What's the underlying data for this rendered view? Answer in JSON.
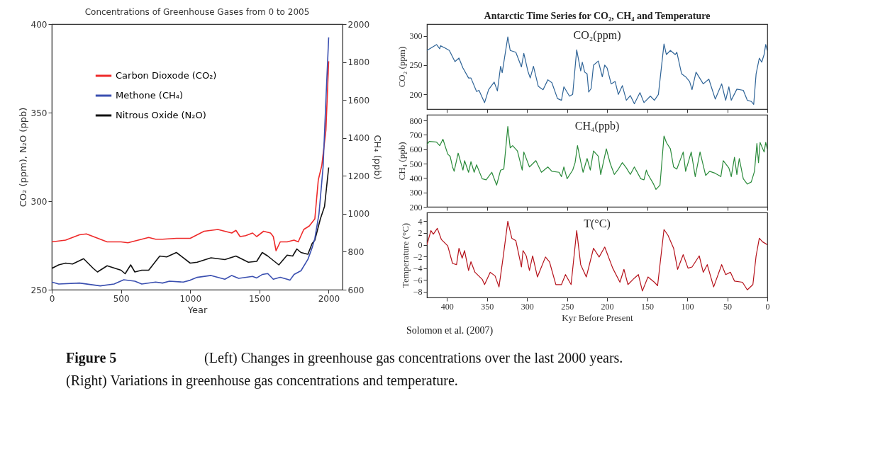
{
  "chart_data": [
    {
      "type": "line",
      "title": "Concentrations of Greenhouse Gases from 0 to 2005",
      "xlabel": "Year",
      "ylabel": "CO₂ (ppm), N₂O (ppb)",
      "y2label": "CH₄ (ppb)",
      "xlim": [
        0,
        2100
      ],
      "xticks": [
        0,
        500,
        1000,
        1500,
        2000
      ],
      "ylim": [
        250,
        400
      ],
      "yticks": [
        250,
        300,
        350,
        400
      ],
      "y2lim": [
        600,
        2000
      ],
      "y2ticks": [
        600,
        800,
        1000,
        1200,
        1400,
        1600,
        1800,
        2000
      ],
      "legend": "top left",
      "grid": false,
      "series": [
        {
          "name": "Carbon Dioxode (CO₂)",
          "color": "#ee2a2a",
          "x": [
            0,
            100,
            200,
            250,
            300,
            400,
            500,
            550,
            600,
            700,
            750,
            800,
            900,
            1000,
            1050,
            1100,
            1200,
            1250,
            1300,
            1330,
            1360,
            1400,
            1450,
            1480,
            1530,
            1580,
            1600,
            1620,
            1650,
            1700,
            1750,
            1780,
            1820,
            1860,
            1900,
            1925,
            1950,
            1980,
            2000
          ],
          "values": [
            277,
            278,
            281,
            281.5,
            280,
            277,
            277,
            276.5,
            277.5,
            279.5,
            278.5,
            278.5,
            279,
            279,
            281,
            283,
            284,
            283,
            282,
            283.5,
            280,
            280.5,
            282,
            280,
            283,
            282,
            280,
            272,
            277,
            277,
            278,
            277,
            284,
            286,
            290,
            312,
            320,
            340,
            379
          ]
        },
        {
          "name": "Methone (CH₄)",
          "color": "#3a4fb0",
          "axis": "y2",
          "x": [
            0,
            50,
            200,
            350,
            450,
            520,
            600,
            650,
            750,
            800,
            850,
            950,
            1000,
            1050,
            1150,
            1250,
            1300,
            1350,
            1450,
            1480,
            1520,
            1560,
            1600,
            1650,
            1700,
            1720,
            1750,
            1800,
            1850,
            1880,
            1900,
            1930,
            1960,
            1980,
            2000
          ],
          "values": [
            640,
            630,
            635,
            620,
            630,
            652,
            645,
            630,
            640,
            635,
            645,
            640,
            650,
            665,
            675,
            655,
            675,
            660,
            670,
            662,
            680,
            685,
            655,
            665,
            655,
            650,
            680,
            700,
            760,
            820,
            870,
            1000,
            1250,
            1600,
            1930
          ]
        },
        {
          "name": "Nitrous Oxide (N₂O)",
          "color": "#111111",
          "x": [
            0,
            50,
            100,
            150,
            230,
            300,
            330,
            400,
            500,
            530,
            570,
            600,
            650,
            700,
            780,
            830,
            900,
            1000,
            1050,
            1150,
            1250,
            1330,
            1420,
            1480,
            1520,
            1560,
            1640,
            1700,
            1740,
            1770,
            1800,
            1850,
            1880,
            1900,
            1940,
            1970,
            2000
          ],
          "values": [
            262,
            264,
            265,
            264.5,
            267.5,
            262,
            260,
            263.5,
            261,
            259,
            264,
            260,
            261,
            261,
            269,
            268.5,
            271,
            265,
            265.5,
            268,
            267,
            269,
            265.5,
            266,
            271,
            269,
            264,
            269.5,
            269,
            273,
            271,
            270,
            276,
            278,
            290,
            297,
            319
          ]
        }
      ],
      "annotations": [
        "Solomon et al. (2007)",
        "Figure 5",
        "(Left) Changes in greenhouse gas concentrations over the last 2000 years.",
        "(Right) Variations in greenhouse gas concentrations and temperature."
      ]
    },
    {
      "type": "line",
      "title": "Antarctic Time Series for CO₂, CH₄ and Temperature",
      "ylabel": "CO₂ (ppm)",
      "xlim": [
        425,
        0
      ],
      "xticks": [
        400,
        350,
        300,
        250,
        200,
        150,
        100,
        50,
        0
      ],
      "ylim": [
        175,
        320
      ],
      "yticks": [
        200,
        250,
        300
      ],
      "tick_labels": "y",
      "annotations": [
        "CO₂(ppm)"
      ],
      "series": [
        {
          "color": "#2f6497",
          "x": [
            425,
            413,
            409,
            408,
            402,
            397,
            390,
            385,
            380,
            373,
            370,
            363,
            360,
            353,
            348,
            341,
            337,
            333,
            331,
            324,
            321,
            314,
            307,
            304,
            299,
            296,
            292,
            286,
            280,
            274,
            269,
            262,
            257,
            254,
            247,
            243,
            238,
            233,
            231,
            228,
            225,
            223,
            220,
            217,
            211,
            206,
            203,
            200,
            195,
            190,
            186,
            181,
            176,
            171,
            166,
            159,
            154,
            146,
            141,
            136,
            129,
            126,
            121,
            115,
            113,
            107,
            102,
            97,
            94,
            89,
            80,
            73,
            65,
            57,
            52,
            48,
            45,
            38,
            30,
            25,
            20,
            17,
            14,
            10,
            7,
            4,
            2,
            0
          ],
          "values": [
            275,
            285,
            278,
            283,
            279,
            275,
            256,
            262,
            245,
            228,
            228,
            205,
            207,
            186,
            208,
            221,
            206,
            248,
            237,
            298,
            275,
            272,
            247,
            270,
            240,
            228,
            248,
            214,
            208,
            225,
            220,
            193,
            190,
            213,
            197,
            200,
            276,
            240,
            255,
            238,
            235,
            204,
            210,
            250,
            257,
            230,
            250,
            245,
            218,
            222,
            200,
            215,
            190,
            198,
            184,
            203,
            186,
            197,
            190,
            200,
            286,
            268,
            275,
            268,
            272,
            235,
            230,
            222,
            208,
            238,
            218,
            226,
            192,
            218,
            190,
            213,
            190,
            209,
            207,
            190,
            188,
            183,
            235,
            262,
            255,
            268,
            285,
            275
          ]
        }
      ]
    },
    {
      "type": "line",
      "ylabel": "CH₄ (ppb)",
      "xlim": [
        425,
        0
      ],
      "xticks": [
        400,
        350,
        300,
        250,
        200,
        150,
        100,
        50,
        0
      ],
      "ylim": [
        200,
        840
      ],
      "yticks": [
        200,
        300,
        400,
        500,
        600,
        700,
        800
      ],
      "tick_labels": "y",
      "annotations": [
        "CH₄(ppb)"
      ],
      "series": [
        {
          "color": "#2a8a3a",
          "x": [
            425,
            422,
            413,
            409,
            405,
            399,
            396,
            393,
            391,
            386,
            380,
            378,
            373,
            370,
            366,
            363,
            356,
            351,
            344,
            338,
            333,
            329,
            324,
            321,
            318,
            312,
            306,
            304,
            297,
            289,
            282,
            274,
            269,
            260,
            257,
            254,
            250,
            243,
            240,
            237,
            233,
            230,
            225,
            221,
            217,
            211,
            208,
            201,
            196,
            191,
            186,
            181,
            176,
            171,
            166,
            158,
            154,
            151,
            149,
            142,
            139,
            134,
            129,
            126,
            121,
            117,
            113,
            105,
            102,
            95,
            90,
            84,
            77,
            72,
            65,
            58,
            55,
            48,
            45,
            41,
            38,
            35,
            30,
            25,
            20,
            16,
            13,
            11,
            9,
            4,
            2,
            0
          ],
          "values": [
            633,
            655,
            650,
            625,
            670,
            566,
            551,
            477,
            447,
            573,
            455,
            521,
            440,
            514,
            440,
            492,
            395,
            388,
            440,
            351,
            455,
            462,
            758,
            610,
            625,
            588,
            455,
            581,
            477,
            521,
            440,
            477,
            447,
            440,
            410,
            477,
            395,
            455,
            507,
            625,
            514,
            440,
            536,
            455,
            588,
            551,
            425,
            603,
            499,
            425,
            462,
            507,
            470,
            425,
            477,
            395,
            388,
            455,
            425,
            358,
            321,
            351,
            692,
            647,
            603,
            477,
            462,
            581,
            447,
            581,
            410,
            581,
            418,
            447,
            433,
            410,
            521,
            470,
            410,
            544,
            425,
            536,
            395,
            358,
            373,
            447,
            640,
            507,
            647,
            581,
            647,
            603
          ]
        }
      ]
    },
    {
      "type": "line",
      "xlabel": "Kyr Before Present",
      "ylabel": "Temperature (°C)",
      "xlim": [
        425,
        0
      ],
      "xticks": [
        400,
        350,
        300,
        250,
        200,
        150,
        100,
        50,
        0
      ],
      "ylim": [
        -9,
        5.5
      ],
      "yticks": [
        -8,
        -6,
        -4,
        -2,
        0,
        2,
        4
      ],
      "annotations": [
        "T(°C)"
      ],
      "series": [
        {
          "color": "#b5121b",
          "x": [
            425,
            420,
            417,
            412,
            407,
            399,
            393,
            388,
            385,
            381,
            378,
            373,
            370,
            365,
            356,
            353,
            346,
            340,
            335,
            330,
            324,
            319,
            314,
            307,
            305,
            301,
            297,
            293,
            287,
            277,
            272,
            264,
            257,
            252,
            245,
            238,
            233,
            226,
            217,
            210,
            203,
            193,
            184,
            179,
            174,
            166,
            161,
            156,
            149,
            141,
            137,
            129,
            124,
            117,
            112,
            105,
            99,
            94,
            85,
            80,
            75,
            67,
            57,
            52,
            46,
            41,
            31,
            25,
            18,
            14,
            10,
            6,
            0
          ],
          "values": [
            0,
            2.4,
            1.8,
            2.8,
            0.9,
            -0.2,
            -3.2,
            -3.4,
            -0.6,
            -2.3,
            -1.0,
            -4.4,
            -2.9,
            -4.7,
            -5.9,
            -6.8,
            -4.7,
            -5.3,
            -7.2,
            -2.3,
            4.0,
            1.1,
            0.7,
            -3.8,
            -1.0,
            -1.9,
            -4.4,
            -1.9,
            -5.5,
            -2.1,
            -2.9,
            -6.8,
            -6.8,
            -5.1,
            -6.8,
            2.4,
            -3.4,
            -5.5,
            -0.6,
            -2.1,
            -0.4,
            -4.0,
            -6.4,
            -4.2,
            -6.8,
            -5.7,
            -5.1,
            -7.9,
            -5.5,
            -6.4,
            -7.0,
            2.6,
            1.6,
            -0.6,
            -4.2,
            -1.7,
            -4.0,
            -3.8,
            -1.9,
            -4.7,
            -3.4,
            -7.2,
            -3.4,
            -5.1,
            -4.7,
            -6.2,
            -6.4,
            -7.7,
            -6.8,
            -1.9,
            1.1,
            0.5,
            0
          ]
        }
      ]
    }
  ]
}
